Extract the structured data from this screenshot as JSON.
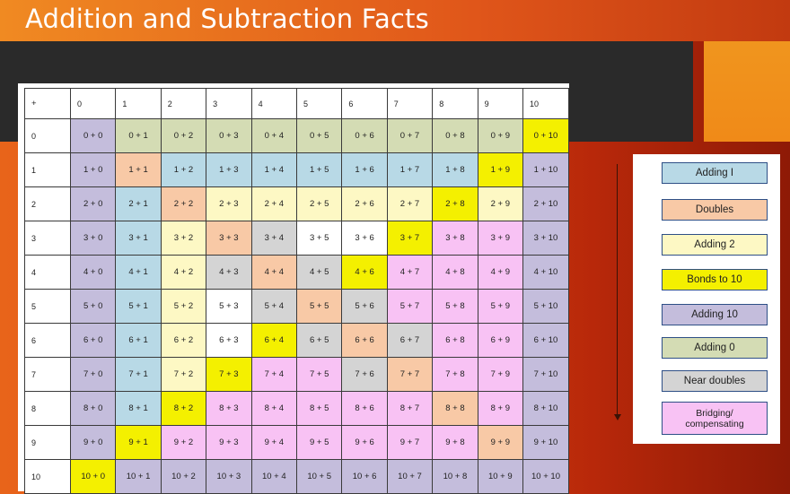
{
  "slide": {
    "title": "Addition and Subtraction Facts"
  },
  "table": {
    "corner": "+",
    "columns": [
      "0",
      "1",
      "2",
      "3",
      "4",
      "5",
      "6",
      "7",
      "8",
      "9",
      "10"
    ],
    "rows": [
      {
        "header": "0",
        "cells": [
          "0 + 0",
          "0 + 1",
          "0 + 2",
          "0 + 3",
          "0 + 4",
          "0 + 5",
          "0 + 6",
          "0 + 7",
          "0 + 8",
          "0 + 9",
          "0 + 10"
        ]
      },
      {
        "header": "1",
        "cells": [
          "1 + 0",
          "1 + 1",
          "1 + 2",
          "1 + 3",
          "1 + 4",
          "1 + 5",
          "1 + 6",
          "1 + 7",
          "1 + 8",
          "1 + 9",
          "1 + 10"
        ]
      },
      {
        "header": "2",
        "cells": [
          "2 + 0",
          "2 + 1",
          "2 + 2",
          "2 + 3",
          "2 + 4",
          "2 + 5",
          "2 + 6",
          "2 + 7",
          "2 + 8",
          "2 + 9",
          "2 + 10"
        ]
      },
      {
        "header": "3",
        "cells": [
          "3 + 0",
          "3 + 1",
          "3 + 2",
          "3 + 3",
          "3 + 4",
          "3 + 5",
          "3 + 6",
          "3 + 7",
          "3 + 8",
          "3 + 9",
          "3 + 10"
        ]
      },
      {
        "header": "4",
        "cells": [
          "4 + 0",
          "4 + 1",
          "4 + 2",
          "4 + 3",
          "4 + 4",
          "4 + 5",
          "4 + 6",
          "4 + 7",
          "4 + 8",
          "4 + 9",
          "4 + 10"
        ]
      },
      {
        "header": "5",
        "cells": [
          "5 + 0",
          "5 + 1",
          "5 + 2",
          "5 + 3",
          "5 + 4",
          "5 + 5",
          "5 + 6",
          "5 + 7",
          "5 + 8",
          "5 + 9",
          "5 + 10"
        ]
      },
      {
        "header": "6",
        "cells": [
          "6 + 0",
          "6 + 1",
          "6 + 2",
          "6 + 3",
          "6 + 4",
          "6 + 5",
          "6 + 6",
          "6 + 7",
          "6 + 8",
          "6 + 9",
          "6 + 10"
        ]
      },
      {
        "header": "7",
        "cells": [
          "7 + 0",
          "7 + 1",
          "7 + 2",
          "7 + 3",
          "7 + 4",
          "7 + 5",
          "7 + 6",
          "7 + 7",
          "7 + 8",
          "7 + 9",
          "7 + 10"
        ]
      },
      {
        "header": "8",
        "cells": [
          "8 + 0",
          "8 + 1",
          "8 + 2",
          "8 + 3",
          "8 + 4",
          "8 + 5",
          "8 + 6",
          "8 + 7",
          "8 + 8",
          "8 + 9",
          "8 + 10"
        ]
      },
      {
        "header": "9",
        "cells": [
          "9 + 0",
          "9 + 1",
          "9 + 2",
          "9 + 3",
          "9 + 4",
          "9 + 5",
          "9 + 6",
          "9 + 7",
          "9 + 8",
          "9 + 9",
          "9 + 10"
        ]
      },
      {
        "header": "10",
        "cells": [
          "10 + 0",
          "10 + 1",
          "10 + 2",
          "10 + 3",
          "10 + 4",
          "10 + 5",
          "10 + 6",
          "10 + 7",
          "10 + 8",
          "10 + 9",
          "10 + 10"
        ]
      }
    ],
    "categories": [
      "AZYYYYYYYYB",
      "ADIIIIIIIBA",
      "AIDJJJJJBJA",
      "AIJDNWWBMMA",
      "AIJNDNBMMMA",
      "AIJWNDNMMMA",
      "AIJWBNDNMMA",
      "AIJBMMNDMMA",
      "AIBMMMMMDMA",
      "ABMMMMMMMDA",
      "BAAAAAAAAAA"
    ]
  },
  "colors": {
    "Z": "#d4dcb4",
    "Y": "#d4dcb4",
    "I": "#b8d9e6",
    "D": "#f8c9a6",
    "J": "#fdf8c4",
    "B": "#f4f000",
    "A": "#c4bddc",
    "N": "#d4d4d4",
    "M": "#f8c2f4",
    "W": "#ffffff"
  },
  "legend": [
    {
      "label": "Adding I",
      "color": "#b8d9e6"
    },
    {
      "label": "Doubles",
      "color": "#f8c9a6"
    },
    {
      "label": "Adding 2",
      "color": "#fdf8c4"
    },
    {
      "label": "Bonds to 10",
      "color": "#f4f000"
    },
    {
      "label": "Adding 10",
      "color": "#c4bddc"
    },
    {
      "label": "Adding 0",
      "color": "#d4dcb4"
    },
    {
      "label": "Near doubles",
      "color": "#d4d4d4"
    },
    {
      "label": "Bridging/\ncompensating",
      "color": "#f8c2f4"
    }
  ]
}
